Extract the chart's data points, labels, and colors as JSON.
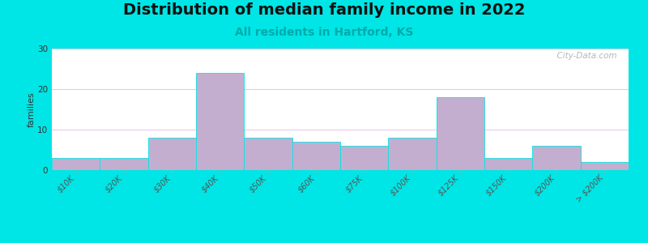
{
  "title": "Distribution of median family income in 2022",
  "subtitle": "All residents in Hartford, KS",
  "ylabel": "families",
  "categories": [
    "$10K",
    "$20K",
    "$30K",
    "$40K",
    "$50K",
    "$60K",
    "$75K",
    "$100K",
    "$125K",
    "$150K",
    "$200K",
    "> $200K"
  ],
  "values": [
    3,
    3,
    8,
    24,
    8,
    7,
    6,
    8,
    18,
    3,
    6,
    2
  ],
  "bar_color": "#c4aed0",
  "bar_edgecolor": "#00e5e5",
  "background_outer": "#00e5e5",
  "ylim": [
    0,
    30
  ],
  "yticks": [
    0,
    10,
    20,
    30
  ],
  "title_fontsize": 14,
  "subtitle_fontsize": 10,
  "subtitle_color": "#00aaaa",
  "ylabel_fontsize": 8,
  "tick_fontsize": 7,
  "watermark": "  City-Data.com",
  "grid_color": "#ddbbdd",
  "bg_top_color": "#f5fff0",
  "bg_bottom_color": "#e0f5f5"
}
